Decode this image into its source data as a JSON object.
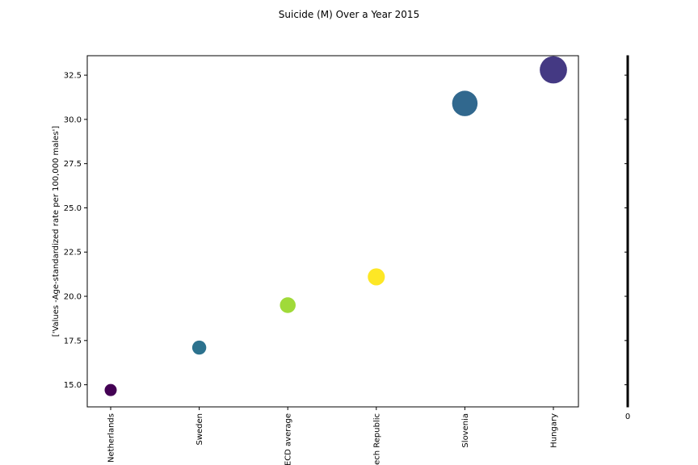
{
  "chart_data": {
    "type": "scatter",
    "title": "Suicide (M) Over a Year 2015",
    "xlabel": "",
    "ylabel": "['Values -Age-standardized rate per 100,000 males']",
    "categories": [
      "Netherlands",
      "Sweden",
      "OECD average",
      "Czech Republic",
      "Slovenia",
      "Hungary"
    ],
    "values": [
      14.7,
      17.1,
      19.5,
      21.1,
      30.9,
      32.8
    ],
    "point_colors": [
      "#440154",
      "#2c728e",
      "#a0da39",
      "#fde725",
      "#31688e",
      "#443983"
    ],
    "point_sizes": [
      1.0,
      1.16,
      1.3,
      1.41,
      2.1,
      2.25
    ],
    "ylim": [
      13.75,
      33.6
    ],
    "yticks": [
      "15.0",
      "17.5",
      "20.0",
      "22.5",
      "25.0",
      "27.5",
      "30.0",
      "32.5"
    ],
    "grid": false,
    "colorbar_tick_label": "0"
  }
}
